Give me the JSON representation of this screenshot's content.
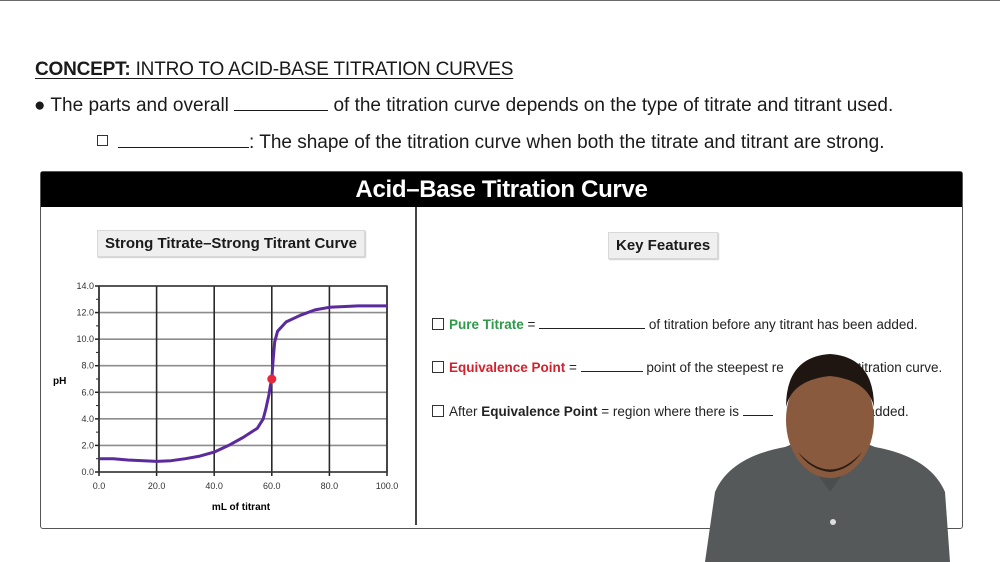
{
  "page": {
    "concept_label": "CONCEPT:",
    "concept_title": " INTRO TO ACID-BASE TITRATION CURVES",
    "bullet_1": {
      "bullet": "●",
      "before": " The parts and overall ",
      "after": " of the titration curve depends on the type of titrate and titrant used."
    },
    "bullet_2": {
      "after": ": The shape of the titration curve when both the titrate and titrant are strong."
    }
  },
  "panel": {
    "title": "Acid–Base Titration Curve",
    "left_heading": "Strong Titrate–Strong Titrant Curve",
    "right_heading": "Key Features",
    "features": [
      {
        "term": "Pure Titrate",
        "term_color": "#2e9a4a",
        "eq": " = ",
        "after": " of titration before any titrant has been added."
      },
      {
        "term": "Equivalence Point",
        "term_color": "#d41f2c",
        "eq": " = ",
        "after_visible_1": " point of the steepest re",
        "after_visible_2": " titration curve."
      },
      {
        "prefix": "After ",
        "term": "Equivalence Point",
        "eq": " = region where there is ",
        "after_visible": "ll added."
      }
    ]
  },
  "chart_data": {
    "type": "line",
    "title": "Strong Titrate–Strong Titrant Curve",
    "xlabel": "mL of titrant",
    "ylabel": "pH",
    "xlim": [
      0,
      100
    ],
    "ylim": [
      0,
      14
    ],
    "x_ticks": [
      "0.0",
      "20.0",
      "40.0",
      "60.0",
      "80.0",
      "100.0"
    ],
    "y_ticks": [
      "0.0",
      "2.0",
      "4.0",
      "6.0",
      "8.0",
      "10.0",
      "12.0",
      "14.0"
    ],
    "grid": true,
    "line_color": "#5b2a9c",
    "series": [
      {
        "name": "pH",
        "x": [
          0,
          5,
          10,
          20,
          25,
          30,
          35,
          40,
          45,
          50,
          55,
          57,
          58,
          59,
          59.5,
          60,
          60.5,
          61,
          62,
          65,
          70,
          75,
          80,
          90,
          100
        ],
        "y": [
          1.0,
          1.0,
          0.9,
          0.8,
          0.85,
          1.0,
          1.2,
          1.5,
          2.0,
          2.6,
          3.3,
          4.0,
          4.8,
          5.8,
          6.5,
          7.0,
          8.5,
          9.8,
          10.6,
          11.3,
          11.8,
          12.2,
          12.4,
          12.5,
          12.5
        ]
      }
    ],
    "annotations": [
      {
        "type": "point",
        "label": "equivalence point",
        "x": 60,
        "y": 7.0,
        "color": "#e8283a"
      }
    ]
  }
}
